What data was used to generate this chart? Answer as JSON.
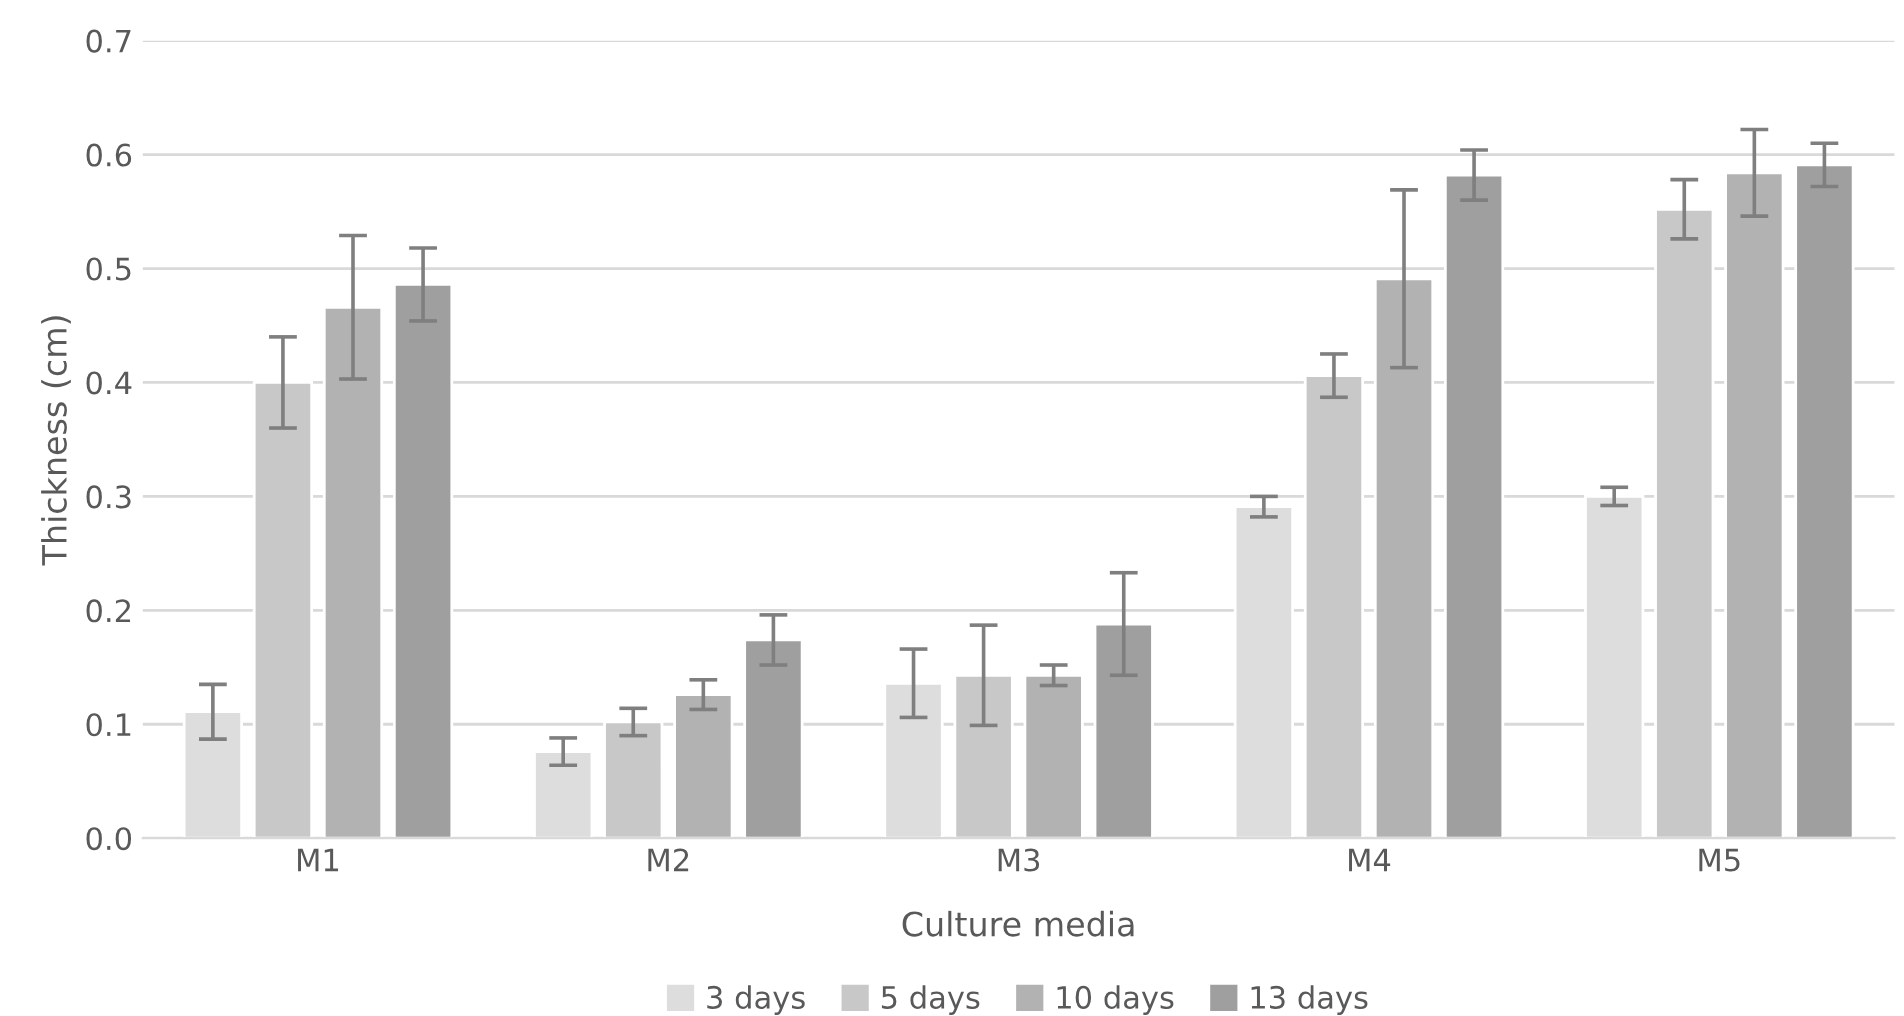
{
  "chart_data": {
    "type": "bar",
    "xlabel": "Culture media",
    "ylabel": "Thickness (cm)",
    "categories": [
      "M1",
      "M2",
      "M3",
      "M4",
      "M5"
    ],
    "series": [
      {
        "name": "3 days",
        "color": "#dcdddc",
        "values": [
          0.111,
          0.076,
          0.136,
          0.291,
          0.3
        ],
        "errors": [
          0.024,
          0.012,
          0.03,
          0.009,
          0.008
        ]
      },
      {
        "name": "5 days",
        "color": "#c7c8c7",
        "values": [
          0.4,
          0.102,
          0.143,
          0.406,
          0.552
        ],
        "errors": [
          0.04,
          0.012,
          0.044,
          0.019,
          0.026
        ]
      },
      {
        "name": "10 days",
        "color": "#b1b2b1",
        "values": [
          0.466,
          0.126,
          0.143,
          0.491,
          0.584
        ],
        "errors": [
          0.063,
          0.013,
          0.009,
          0.078,
          0.038
        ]
      },
      {
        "name": "13 days",
        "color": "#9e9f9e",
        "values": [
          0.486,
          0.174,
          0.188,
          0.582,
          0.591
        ],
        "errors": [
          0.032,
          0.022,
          0.045,
          0.022,
          0.019
        ]
      }
    ],
    "ylim": [
      0,
      0.7
    ],
    "yticks": [
      {
        "value": 0,
        "label": "0.0"
      },
      0.1,
      0.2,
      0.3,
      0.4,
      0.5,
      0.6,
      0.7
    ],
    "grid": "y",
    "legend": "bottom"
  }
}
